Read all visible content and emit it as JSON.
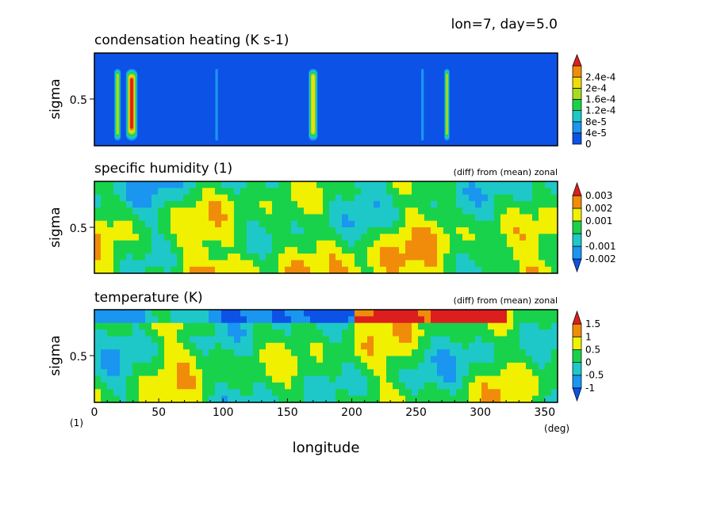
{
  "header": {
    "info": "lon=7, day=5.0"
  },
  "x_axis": {
    "label": "longitude",
    "unit": "(deg)",
    "left_unit": "(1)",
    "ticks": [
      "0",
      "50",
      "100",
      "150",
      "200",
      "250",
      "300",
      "350"
    ]
  },
  "chart_data": [
    {
      "type": "heatmap",
      "title": "condensation heating (K s-1)",
      "subtitle": "",
      "xlabel": "longitude",
      "ylabel": "sigma",
      "xlim": [
        0,
        360
      ],
      "ylim": [
        0,
        1
      ],
      "y_ticks": [
        "0.5"
      ],
      "colorbar": {
        "labels": [
          "0",
          "4e-5",
          "8e-5",
          "1.2e-4",
          "1.6e-4",
          "2e-4",
          "2.4e-4"
        ],
        "colors": [
          "#0d52e6",
          "#1a96f0",
          "#1ec8c8",
          "#19d24b",
          "#aadc1e",
          "#f0dc0a",
          "#f08c0a",
          "#dc1e1e"
        ]
      },
      "features": [
        {
          "lon": 18,
          "width": 5,
          "level": 4
        },
        {
          "lon": 29,
          "width": 9,
          "level": 7
        },
        {
          "lon": 95,
          "width": 2,
          "level": 1
        },
        {
          "lon": 170,
          "width": 7,
          "level": 5
        },
        {
          "lon": 255,
          "width": 2,
          "level": 1
        },
        {
          "lon": 274,
          "width": 4,
          "level": 4
        }
      ]
    },
    {
      "type": "heatmap",
      "title": "specific humidity (1)",
      "subtitle": "(diff) from (mean) zonal",
      "xlabel": "longitude",
      "ylabel": "sigma",
      "xlim": [
        0,
        360
      ],
      "ylim": [
        0,
        1
      ],
      "y_ticks": [
        "0.5"
      ],
      "colorbar": {
        "labels": [
          "-0.002",
          "-0.001",
          "0",
          "0.001",
          "0.002",
          "0.003"
        ],
        "colors": [
          "#0d52e6",
          "#1a96f0",
          "#1ec8c8",
          "#19d24b",
          "#f0f000",
          "#f08c0a",
          "#dc1e1e"
        ]
      }
    },
    {
      "type": "heatmap",
      "title": "temperature (K)",
      "subtitle": "(diff) from (mean) zonal",
      "xlabel": "longitude",
      "ylabel": "sigma",
      "xlim": [
        0,
        360
      ],
      "ylim": [
        0,
        1
      ],
      "y_ticks": [
        "0.5"
      ],
      "colorbar": {
        "labels": [
          "-1",
          "-0.5",
          "0",
          "0.5",
          "1",
          "1.5"
        ],
        "colors": [
          "#0d52e6",
          "#1a96f0",
          "#1ec8c8",
          "#19d24b",
          "#f0f000",
          "#f08c0a",
          "#dc1e1e"
        ]
      }
    }
  ]
}
